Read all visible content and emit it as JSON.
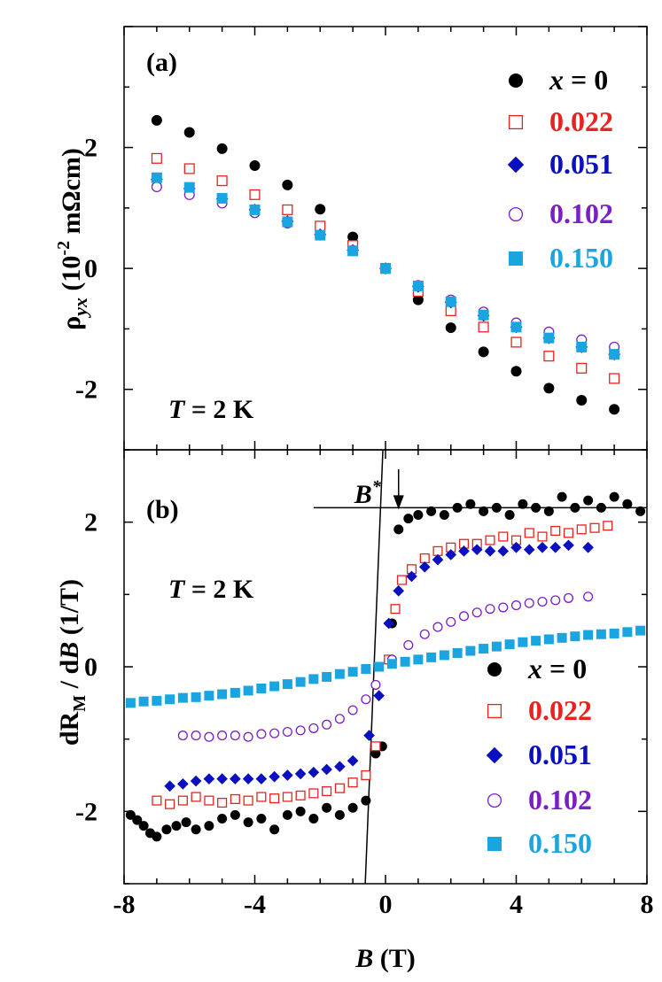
{
  "colors": {
    "black": "#000000",
    "red": "#e8231f",
    "blue": "#0a0fbf",
    "purple": "#7a1fc4",
    "cyan": "#1aa5e0"
  },
  "chart_data": [
    {
      "type": "scatter",
      "panel_label": "(a)",
      "annotation": {
        "var": "T",
        "text": " = 2 K"
      },
      "ylabel": {
        "main": "ρ",
        "sub": "yx",
        "rest": " (10",
        "sup": "-2",
        "unit": " mΩcm)"
      },
      "xlim": [
        -8,
        8
      ],
      "ylim": [
        -3,
        4
      ],
      "yticks": [
        {
          "v": 2,
          "label": "2"
        },
        {
          "v": 0,
          "label": "0"
        },
        {
          "v": -2,
          "label": "-2"
        }
      ],
      "legend": {
        "position": "right",
        "entries": [
          {
            "label": "0.022",
            "marker": "open-square",
            "color": "#e8231f"
          }
        ]
      },
      "legend_first": {
        "var": "x",
        "text": " = 0",
        "marker": "filled-circle",
        "color": "#000000"
      },
      "legend_rest": [
        {
          "label": "0.022",
          "marker": "open-square",
          "color": "#e8231f"
        },
        {
          "label": "0.051",
          "marker": "filled-diamond",
          "color": "#0a0fbf"
        },
        {
          "label": "0.102",
          "marker": "open-circle",
          "color": "#7a1fc4"
        },
        {
          "label": "0.150",
          "marker": "filled-square",
          "color": "#1aa5e0"
        }
      ],
      "series": [
        {
          "key": "x0",
          "marker": "filled-circle",
          "color": "#000000",
          "x": [
            -7,
            -6,
            -5,
            -4,
            -3,
            -2,
            -1,
            0,
            1,
            2,
            3,
            4,
            5,
            6,
            7
          ],
          "y": [
            2.45,
            2.25,
            1.98,
            1.7,
            1.38,
            0.98,
            0.52,
            0.0,
            -0.52,
            -0.98,
            -1.38,
            -1.7,
            -1.98,
            -2.18,
            -2.33
          ]
        },
        {
          "key": "x0.022",
          "marker": "open-square",
          "color": "#e8231f",
          "x": [
            -7,
            -6,
            -5,
            -4,
            -3,
            -2,
            -1,
            0,
            1,
            2,
            3,
            4,
            5,
            6,
            7
          ],
          "y": [
            1.82,
            1.65,
            1.45,
            1.22,
            0.97,
            0.7,
            0.38,
            0.0,
            -0.38,
            -0.7,
            -0.97,
            -1.22,
            -1.45,
            -1.65,
            -1.82
          ]
        },
        {
          "key": "x0.051",
          "marker": "filled-diamond",
          "color": "#0a0fbf",
          "x": [
            -7,
            -6,
            -5,
            -4,
            -3,
            -2,
            -1,
            0,
            1,
            2,
            3,
            4,
            5,
            6,
            7
          ],
          "y": [
            1.47,
            1.32,
            1.15,
            0.97,
            0.78,
            0.56,
            0.3,
            0.0,
            -0.3,
            -0.56,
            -0.78,
            -0.97,
            -1.15,
            -1.3,
            -1.42
          ]
        },
        {
          "key": "x0.102",
          "marker": "open-circle",
          "color": "#7a1fc4",
          "x": [
            -7,
            -6,
            -5,
            -4,
            -3,
            -2,
            -1,
            0,
            1,
            2,
            3,
            4,
            5,
            6,
            7
          ],
          "y": [
            1.35,
            1.22,
            1.08,
            0.92,
            0.75,
            0.55,
            0.3,
            0.0,
            -0.28,
            -0.52,
            -0.72,
            -0.9,
            -1.05,
            -1.18,
            -1.3
          ]
        },
        {
          "key": "x0.150",
          "marker": "filled-square",
          "color": "#1aa5e0",
          "x": [
            -7,
            -6,
            -5,
            -4,
            -3,
            -2,
            -1,
            0,
            1,
            2,
            3,
            4,
            5,
            6,
            7
          ],
          "y": [
            1.5,
            1.34,
            1.16,
            0.97,
            0.77,
            0.55,
            0.29,
            0.0,
            -0.29,
            -0.55,
            -0.77,
            -0.97,
            -1.15,
            -1.3,
            -1.42
          ]
        }
      ]
    },
    {
      "type": "scatter",
      "panel_label": "(b)",
      "annotation": {
        "var": "T",
        "text": " = 2 K"
      },
      "ylabel": {
        "main": "dR",
        "sub": "M",
        "rest": " / d",
        "var": "B",
        "unit": " (1/T)"
      },
      "xlabel": {
        "var": "B",
        "text": " (T)"
      },
      "xlim": [
        -8,
        8
      ],
      "ylim": [
        -3,
        3
      ],
      "xticks": [
        {
          "v": -8,
          "label": "-8"
        },
        {
          "v": -4,
          "label": "-4"
        },
        {
          "v": 0,
          "label": "0"
        },
        {
          "v": 4,
          "label": "4"
        },
        {
          "v": 8,
          "label": "8"
        }
      ],
      "yticks": [
        {
          "v": 2,
          "label": "2"
        },
        {
          "v": 0,
          "label": "0"
        },
        {
          "v": -2,
          "label": "-2"
        }
      ],
      "bstar": {
        "label": "B",
        "sup": "*",
        "x": 0.4,
        "level": 2.2
      },
      "fit_line": {
        "x": [
          -0.62,
          -0.08
        ],
        "y": [
          -3.0,
          3.0
        ]
      },
      "legend_first": {
        "var": "x",
        "text": " = 0",
        "marker": "filled-circle",
        "color": "#000000"
      },
      "legend_rest": [
        {
          "label": "0.022",
          "marker": "open-square",
          "color": "#e8231f"
        },
        {
          "label": "0.051",
          "marker": "filled-diamond",
          "color": "#0a0fbf"
        },
        {
          "label": "0.102",
          "marker": "open-circle",
          "color": "#7a1fc4"
        },
        {
          "label": "0.150",
          "marker": "filled-square",
          "color": "#1aa5e0"
        }
      ],
      "series": [
        {
          "key": "x0",
          "marker": "filled-circle",
          "color": "#000000",
          "x": [
            -7.8,
            -7.6,
            -7.4,
            -7.2,
            -7.0,
            -6.7,
            -6.4,
            -6.1,
            -5.8,
            -5.4,
            -5.0,
            -4.6,
            -4.2,
            -3.8,
            -3.4,
            -3.0,
            -2.6,
            -2.2,
            -1.8,
            -1.4,
            -1.0,
            -0.6,
            -0.3,
            -0.1,
            0.2,
            0.4,
            0.7,
            1.0,
            1.4,
            1.8,
            2.2,
            2.6,
            3.0,
            3.4,
            3.8,
            4.2,
            4.6,
            5.0,
            5.4,
            5.8,
            6.2,
            6.6,
            7.0,
            7.4,
            7.8
          ],
          "y": [
            -2.05,
            -2.12,
            -2.2,
            -2.3,
            -2.35,
            -2.25,
            -2.2,
            -2.15,
            -2.25,
            -2.2,
            -2.1,
            -2.05,
            -2.15,
            -2.1,
            -2.25,
            -2.05,
            -2.0,
            -2.1,
            -1.95,
            -2.05,
            -1.95,
            -1.85,
            -1.2,
            -1.1,
            0.6,
            1.9,
            2.05,
            2.1,
            2.15,
            2.1,
            2.2,
            2.25,
            2.15,
            2.2,
            2.1,
            2.25,
            2.2,
            2.15,
            2.35,
            2.2,
            2.3,
            2.2,
            2.35,
            2.25,
            2.15
          ]
        },
        {
          "key": "x0.022",
          "marker": "open-square",
          "color": "#e8231f",
          "x": [
            -7.0,
            -6.6,
            -6.2,
            -5.8,
            -5.4,
            -5.0,
            -4.6,
            -4.2,
            -3.8,
            -3.4,
            -3.0,
            -2.6,
            -2.2,
            -1.8,
            -1.4,
            -1.0,
            -0.6,
            -0.3,
            0.1,
            0.3,
            0.5,
            0.8,
            1.2,
            1.6,
            2.0,
            2.4,
            2.8,
            3.2,
            3.6,
            4.0,
            4.4,
            4.8,
            5.2,
            5.6,
            6.0,
            6.4,
            6.8
          ],
          "y": [
            -1.85,
            -1.9,
            -1.85,
            -1.8,
            -1.85,
            -1.88,
            -1.83,
            -1.85,
            -1.8,
            -1.82,
            -1.8,
            -1.78,
            -1.75,
            -1.72,
            -1.68,
            -1.6,
            -1.5,
            -1.1,
            0.1,
            0.8,
            1.2,
            1.35,
            1.5,
            1.6,
            1.65,
            1.7,
            1.7,
            1.75,
            1.8,
            1.75,
            1.85,
            1.8,
            1.88,
            1.85,
            1.9,
            1.92,
            1.95
          ]
        },
        {
          "key": "x0.051",
          "marker": "filled-diamond",
          "color": "#0a0fbf",
          "x": [
            -6.6,
            -6.2,
            -5.8,
            -5.4,
            -5.0,
            -4.6,
            -4.2,
            -3.8,
            -3.4,
            -3.0,
            -2.6,
            -2.2,
            -1.8,
            -1.4,
            -1.0,
            -0.5,
            -0.2,
            0.1,
            0.4,
            0.8,
            1.2,
            1.6,
            2.0,
            2.4,
            2.8,
            3.2,
            3.6,
            4.0,
            4.4,
            4.8,
            5.2,
            5.6,
            6.2
          ],
          "y": [
            -1.65,
            -1.62,
            -1.58,
            -1.55,
            -1.55,
            -1.55,
            -1.55,
            -1.55,
            -1.52,
            -1.5,
            -1.48,
            -1.46,
            -1.42,
            -1.38,
            -1.3,
            -0.95,
            -0.4,
            0.6,
            1.05,
            1.25,
            1.38,
            1.48,
            1.55,
            1.6,
            1.62,
            1.6,
            1.6,
            1.65,
            1.62,
            1.65,
            1.65,
            1.68,
            1.65
          ]
        },
        {
          "key": "x0.102",
          "marker": "open-circle",
          "color": "#7a1fc4",
          "x": [
            -6.2,
            -5.8,
            -5.4,
            -5.0,
            -4.6,
            -4.2,
            -3.8,
            -3.4,
            -3.0,
            -2.6,
            -2.2,
            -1.8,
            -1.4,
            -1.0,
            -0.6,
            -0.3,
            0.2,
            0.7,
            1.2,
            1.6,
            2.0,
            2.4,
            2.8,
            3.2,
            3.6,
            4.0,
            4.4,
            4.8,
            5.2,
            5.6,
            6.2
          ],
          "y": [
            -0.95,
            -0.95,
            -0.97,
            -0.95,
            -0.95,
            -0.97,
            -0.93,
            -0.92,
            -0.9,
            -0.88,
            -0.85,
            -0.8,
            -0.72,
            -0.6,
            -0.45,
            -0.25,
            0.1,
            0.3,
            0.45,
            0.55,
            0.62,
            0.7,
            0.75,
            0.8,
            0.82,
            0.85,
            0.88,
            0.9,
            0.92,
            0.95,
            0.97
          ]
        },
        {
          "key": "x0.150",
          "marker": "filled-square",
          "color": "#1aa5e0",
          "x": [
            -7.8,
            -7.4,
            -7.0,
            -6.6,
            -6.2,
            -5.8,
            -5.4,
            -5.0,
            -4.6,
            -4.2,
            -3.8,
            -3.4,
            -3.0,
            -2.6,
            -2.2,
            -1.8,
            -1.4,
            -1.0,
            -0.6,
            -0.2,
            0.2,
            0.6,
            1.0,
            1.4,
            1.8,
            2.2,
            2.6,
            3.0,
            3.4,
            3.8,
            4.2,
            4.6,
            5.0,
            5.4,
            5.8,
            6.2,
            6.6,
            7.0,
            7.4,
            7.8
          ],
          "y": [
            -0.5,
            -0.48,
            -0.47,
            -0.45,
            -0.43,
            -0.42,
            -0.4,
            -0.38,
            -0.36,
            -0.33,
            -0.3,
            -0.27,
            -0.24,
            -0.21,
            -0.17,
            -0.14,
            -0.1,
            -0.07,
            -0.03,
            0.0,
            0.04,
            0.07,
            0.1,
            0.13,
            0.16,
            0.19,
            0.22,
            0.25,
            0.28,
            0.31,
            0.34,
            0.36,
            0.38,
            0.4,
            0.42,
            0.44,
            0.45,
            0.46,
            0.48,
            0.5
          ]
        }
      ]
    }
  ]
}
